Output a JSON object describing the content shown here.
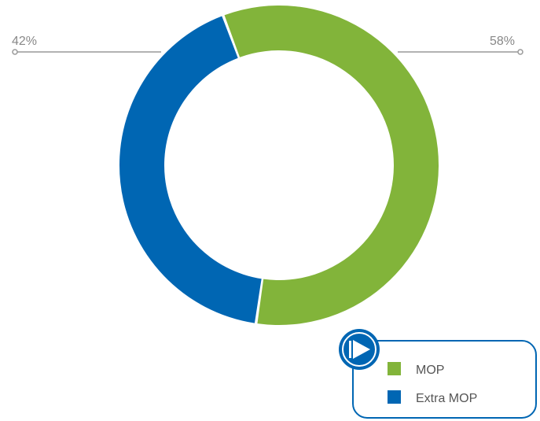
{
  "chart_data": {
    "type": "pie",
    "style": "donut",
    "slices": [
      {
        "name": "MOP",
        "value": 58,
        "label": "58%",
        "color": "#82b43a"
      },
      {
        "name": "Extra MOP",
        "value": 42,
        "label": "42%",
        "color": "#0066b3"
      }
    ],
    "legend": {
      "placement": "bottom-right",
      "items": [
        "MOP",
        "Extra MOP"
      ],
      "icon": "play-icon"
    }
  },
  "colors": {
    "leader_line": "#999999",
    "legend_border": "#0066b3",
    "legend_icon_bg": "#0066b3"
  }
}
